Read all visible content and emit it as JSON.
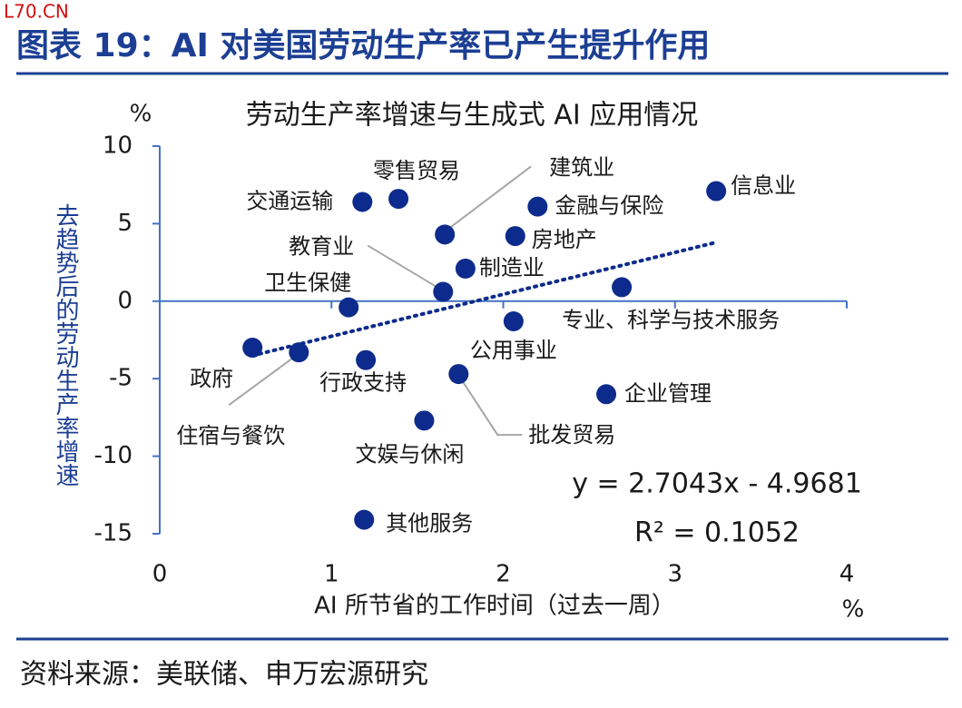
{
  "header": {
    "watermark": "L70.CN",
    "title": "图表 19：AI 对美国劳动生产率已产生提升作用"
  },
  "chart_data": {
    "type": "scatter",
    "title": "劳动生产率增速与生成式 AI 应用情况",
    "x_label": "AI 所节省的工作时间（过去一周）",
    "x_unit": "%",
    "y_label": "去趋势后的劳动生产率增速",
    "y_unit": "%",
    "labels": [
      "交通运输",
      "零售贸易",
      "建筑业",
      "金融与保险",
      "信息业",
      "房地产",
      "制造业",
      "教育业",
      "卫生保健",
      "专业、科学与技术服务",
      "公用事业",
      "政府",
      "住宿与餐饮",
      "行政支持",
      "批发贸易",
      "企业管理",
      "文娱与休闲",
      "其他服务"
    ],
    "x": [
      1.18,
      1.39,
      1.66,
      2.2,
      3.24,
      2.07,
      1.78,
      1.65,
      1.1,
      2.69,
      2.06,
      0.54,
      0.81,
      1.2,
      1.74,
      2.6,
      1.54,
      1.19
    ],
    "values": [
      6.4,
      6.6,
      4.3,
      6.1,
      7.1,
      4.2,
      2.1,
      0.6,
      -0.4,
      0.9,
      -1.3,
      -3.0,
      -3.3,
      -3.8,
      -4.7,
      -6.0,
      -7.7,
      -14.1
    ],
    "color": "#0d2b8c",
    "trendline": {
      "label": "y = 2.7043x - 4.9681",
      "slope": 2.7043,
      "intercept": -4.9681,
      "r2_label": "R² = 0.1052"
    },
    "xlim": [
      0,
      4
    ],
    "xticks": [
      0,
      1,
      2,
      3,
      4
    ],
    "ylim": [
      -15,
      10
    ],
    "yticks": [
      10,
      5,
      0,
      -5,
      -10,
      -15
    ]
  },
  "footer": {
    "source": "资料来源：美联储、申万宏源研究"
  }
}
